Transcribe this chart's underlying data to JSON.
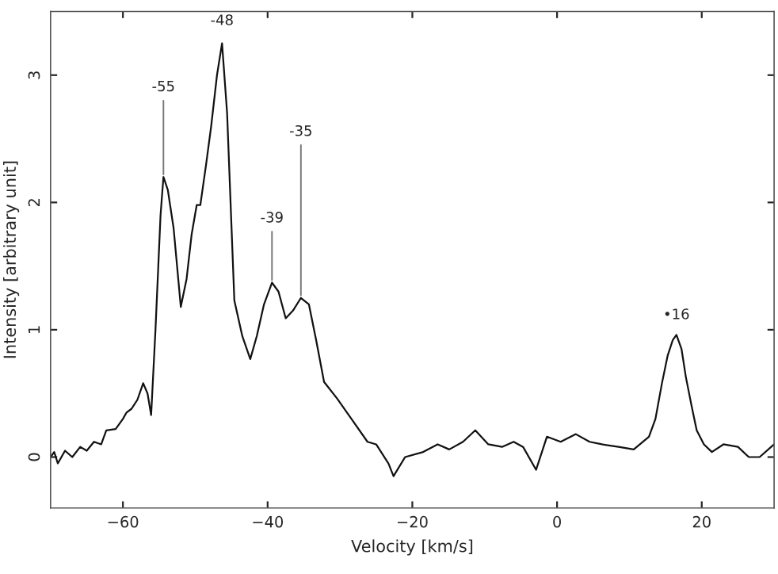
{
  "chart_data": {
    "type": "line",
    "xlabel": "Velocity [km/s]",
    "ylabel": "Intensity [arbitrary unit]",
    "xlim": [
      -70,
      30
    ],
    "ylim": [
      -0.4,
      3.5
    ],
    "xticks": [
      -60,
      -40,
      -20,
      0,
      20
    ],
    "yticks": [
      0,
      1,
      2,
      3
    ],
    "grid": false,
    "legend": false,
    "annotations": [
      {
        "text": "-55",
        "x": -54.4,
        "y": 2.2
      },
      {
        "text": "-48",
        "x": -46.3,
        "y": 3.25
      },
      {
        "text": "-39",
        "x": -39.4,
        "y": 1.37
      },
      {
        "text": "-35",
        "x": -35.4,
        "y": 1.25
      },
      {
        "text": "•16",
        "x": 16.5,
        "y": 0.96
      }
    ],
    "series": [
      {
        "color": "#111111",
        "x": [
          -70,
          -69.5,
          -69,
          -68,
          -67,
          -65.9,
          -65,
          -64,
          -63,
          -62.3,
          -61,
          -60,
          -59.5,
          -58.8,
          -58,
          -57.2,
          -56.6,
          -56.1,
          -55.5,
          -54.8,
          -54.4,
          -53.8,
          -53,
          -52,
          -51.2,
          -50.5,
          -49.8,
          -49.3,
          -48.5,
          -47.8,
          -47,
          -46.3,
          -45.6,
          -44.6,
          -43.5,
          -42.4,
          -41.5,
          -40.5,
          -39.4,
          -38.5,
          -37.5,
          -36.5,
          -35.4,
          -34.3,
          -33.3,
          -32.2,
          -30.4,
          -28.3,
          -26.2,
          -25,
          -23.3,
          -22.6,
          -21,
          -18.5,
          -16.5,
          -14.9,
          -13,
          -11.3,
          -9.5,
          -7.6,
          -6,
          -4.7,
          -2.9,
          -1.4,
          0.5,
          2.6,
          4.5,
          6.2,
          8.5,
          10.6,
          12.7,
          13.6,
          14.5,
          15.3,
          16,
          16.5,
          17.2,
          17.8,
          18.6,
          19.3,
          20.3,
          21.4,
          23,
          25,
          26.5,
          28,
          30
        ],
        "values": [
          0.0,
          0.04,
          -0.05,
          0.05,
          0.0,
          0.08,
          0.05,
          0.12,
          0.1,
          0.21,
          0.22,
          0.3,
          0.35,
          0.38,
          0.45,
          0.58,
          0.5,
          0.33,
          1.0,
          1.9,
          2.2,
          2.1,
          1.8,
          1.18,
          1.4,
          1.75,
          1.98,
          1.98,
          2.3,
          2.6,
          3.0,
          3.25,
          2.7,
          1.23,
          0.95,
          0.77,
          0.95,
          1.2,
          1.37,
          1.3,
          1.09,
          1.15,
          1.25,
          1.2,
          0.92,
          0.59,
          0.46,
          0.29,
          0.12,
          0.1,
          -0.05,
          -0.15,
          0.0,
          0.04,
          0.1,
          0.06,
          0.12,
          0.21,
          0.1,
          0.08,
          0.12,
          0.08,
          -0.1,
          0.16,
          0.12,
          0.18,
          0.12,
          0.1,
          0.08,
          0.06,
          0.16,
          0.3,
          0.58,
          0.8,
          0.92,
          0.96,
          0.85,
          0.63,
          0.4,
          0.21,
          0.1,
          0.04,
          0.1,
          0.08,
          0.0,
          0.0,
          0.1
        ]
      }
    ]
  }
}
